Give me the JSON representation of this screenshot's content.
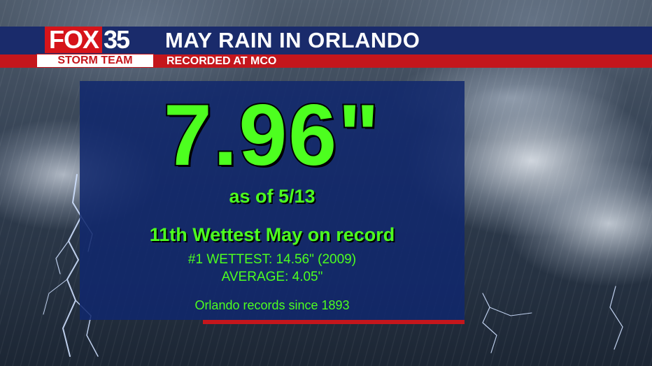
{
  "logo": {
    "fox_text": "FOX",
    "channel_number": "35",
    "storm_team_text": "STORM TEAM",
    "brand_red": "#c4161c"
  },
  "header": {
    "title": "MAY RAIN IN ORLANDO",
    "subtitle": "RECORDED AT MCO",
    "bar_blue": "#1a2b6b"
  },
  "stats": {
    "rain_total": "7.96\"",
    "as_of": "as of 5/13",
    "rank": "11th Wettest May on record",
    "wettest_record": "#1 WETTEST: 14.56\" (2009)",
    "average": "AVERAGE: 4.05\"",
    "records_since": "Orlando records since 1893",
    "text_color": "#4dff1f"
  },
  "background": {
    "scene": "storm-clouds-rain-lightning"
  }
}
